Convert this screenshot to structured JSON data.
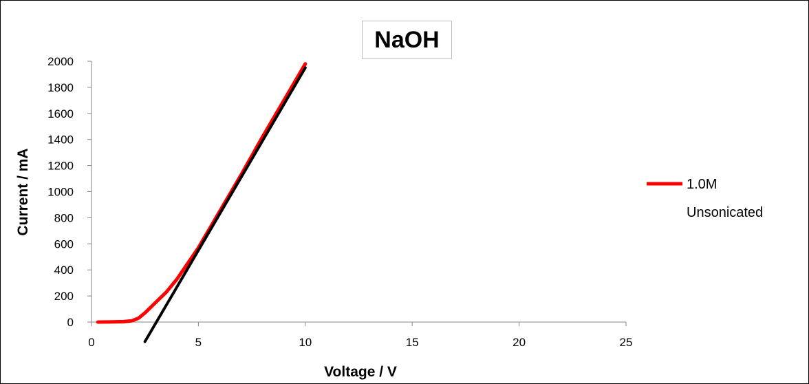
{
  "chart_data": {
    "type": "line",
    "title": "NaOH",
    "xlabel": "Voltage / V",
    "ylabel": "Current / mA",
    "xlim": [
      0,
      25
    ],
    "ylim": [
      0,
      2000
    ],
    "x_ticks": [
      0,
      5,
      10,
      15,
      20,
      25
    ],
    "y_ticks": [
      0,
      200,
      400,
      600,
      800,
      1000,
      1200,
      1400,
      1600,
      1800,
      2000
    ],
    "grid": false,
    "legend_position": "right",
    "series": [
      {
        "name": "1.0M Unsonicated",
        "color": "#ff0000",
        "x": [
          0.3,
          1.0,
          1.5,
          1.9,
          2.2,
          2.5,
          3.0,
          3.5,
          4.0,
          5.0,
          6.0,
          7.0,
          8.0,
          9.0,
          10.0
        ],
        "y": [
          0,
          1,
          3,
          10,
          30,
          70,
          150,
          230,
          330,
          570,
          850,
          1130,
          1420,
          1700,
          1980
        ]
      },
      {
        "color": "#000000",
        "x": [
          2.5,
          10.0
        ],
        "y": [
          -150,
          1950
        ]
      }
    ]
  }
}
